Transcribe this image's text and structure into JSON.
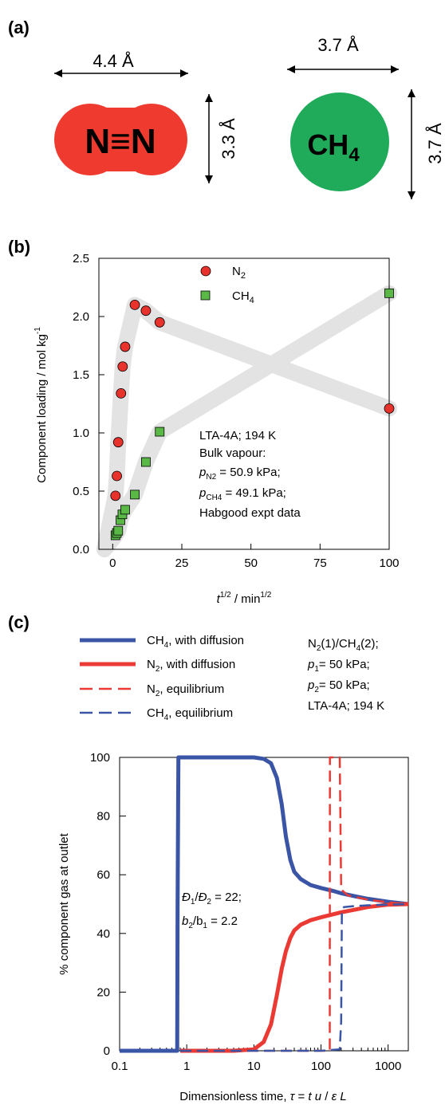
{
  "panel_a": {
    "label": "(a)",
    "n2": {
      "symbol": "N≡N",
      "width_label": "4.4 Å",
      "height_label": "3.3 Å",
      "color": "#ef3b2f"
    },
    "ch4": {
      "symbol": "CH",
      "sub": "4",
      "width_label": "3.7 Å",
      "height_label": "3.7 Å",
      "color": "#1fab5a"
    }
  },
  "chart_data": [
    {
      "type": "scatter",
      "panel": "(b)",
      "xlabel": "t",
      "xlabel_sup": "1/2",
      "xlabel_rest": " / min",
      "xlabel_unit_sup": "1/2",
      "ylabel": "Component loading / mol kg",
      "ylabel_sup": "-1",
      "xlim": [
        -5,
        100
      ],
      "ylim": [
        0,
        2.5
      ],
      "xticks": [
        "0",
        "25",
        "50",
        "75",
        "100"
      ],
      "yticks": [
        "0.0",
        "0.5",
        "1.0",
        "1.5",
        "2.0",
        "2.5"
      ],
      "grid": false,
      "legend_position": "top-center",
      "series": [
        {
          "name": "N",
          "name_sub": "2",
          "marker": "circle",
          "color": "#e8322c",
          "x": [
            1,
            1.5,
            2,
            3,
            3.6,
            4.5,
            8,
            12,
            17,
            100
          ],
          "y": [
            0.46,
            0.63,
            0.92,
            1.34,
            1.57,
            1.74,
            2.1,
            2.05,
            1.95,
            1.21
          ]
        },
        {
          "name": "CH",
          "name_sub": "4",
          "marker": "square",
          "color": "#5ab846",
          "x": [
            1,
            1.5,
            2,
            2.8,
            3.5,
            4.5,
            8,
            12,
            17,
            100
          ],
          "y": [
            0.12,
            0.14,
            0.16,
            0.25,
            0.3,
            0.34,
            0.47,
            0.75,
            1.01,
            2.2
          ]
        }
      ],
      "annotation": [
        "LTA-4A; 194 K",
        "Bulk vapour:",
        "p_N2 = 50.9 kPa;",
        "p_CH4 = 49.1 kPa;",
        "Habgood expt data"
      ]
    },
    {
      "type": "line",
      "panel": "(c)",
      "xlabel": "Dimensionless time, τ = t u / ε L",
      "ylabel": "% component gas at outlet",
      "xscale": "log",
      "xlim": [
        0.1,
        2000
      ],
      "ylim": [
        0,
        100
      ],
      "xticks": [
        "0.1",
        "1",
        "10",
        "100",
        "1000"
      ],
      "yticks": [
        "0",
        "20",
        "40",
        "60",
        "80",
        "100"
      ],
      "grid": false,
      "legend_position": "top-left",
      "series": [
        {
          "name": "CH4, with diffusion",
          "color": "#3b55a6",
          "dash": "solid",
          "x": [
            0.1,
            0.72,
            0.73,
            0.75,
            1,
            5,
            10,
            14,
            18,
            22,
            26,
            30,
            35,
            40,
            50,
            70,
            100,
            150,
            200,
            300,
            500,
            1000,
            2000
          ],
          "y": [
            0,
            0,
            50,
            100,
            100,
            100,
            100,
            99.5,
            98,
            93,
            84,
            73,
            65,
            61,
            58.5,
            56.5,
            55.5,
            54.5,
            53.7,
            52.8,
            51.8,
            50.8,
            50
          ]
        },
        {
          "name": "N2, with diffusion",
          "color": "#ea3a33",
          "dash": "solid",
          "x": [
            0.8,
            1,
            5,
            10,
            14,
            18,
            22,
            26,
            30,
            35,
            40,
            50,
            70,
            100,
            150,
            200,
            300,
            500,
            1000,
            2000
          ],
          "y": [
            0,
            0,
            0,
            0.5,
            3,
            9,
            19,
            28,
            34,
            38.5,
            41,
            43,
            44.5,
            45.5,
            46.5,
            47.2,
            48,
            49,
            49.8,
            50
          ]
        },
        {
          "name": "N2, equilibrium",
          "color": "#ea3a33",
          "dash": "dashed",
          "x": [
            0.8,
            100,
            135,
            136,
            140,
            180,
            190,
            200,
            250,
            500,
            1000,
            2000
          ],
          "y": [
            0,
            0,
            0,
            100,
            100,
            100,
            100,
            55,
            53,
            51.5,
            50.6,
            50
          ]
        },
        {
          "name": "CH4, equilibrium",
          "color": "#3b55a6",
          "dash": "dashed",
          "x": [
            0.8,
            100,
            190,
            200,
            205,
            220,
            300,
            500,
            1000,
            2000
          ],
          "y": [
            0,
            0,
            0.5,
            10,
            48,
            49,
            49.3,
            49.6,
            49.8,
            50
          ]
        }
      ],
      "params": [
        "N2(1)/CH4(2);",
        "p1= 50 kPa;",
        "p2= 50 kPa;",
        "LTA-4A; 194  K"
      ],
      "annotation": [
        "Đ1/Đ2 = 22;",
        "b2/b1 = 2.2"
      ]
    }
  ]
}
